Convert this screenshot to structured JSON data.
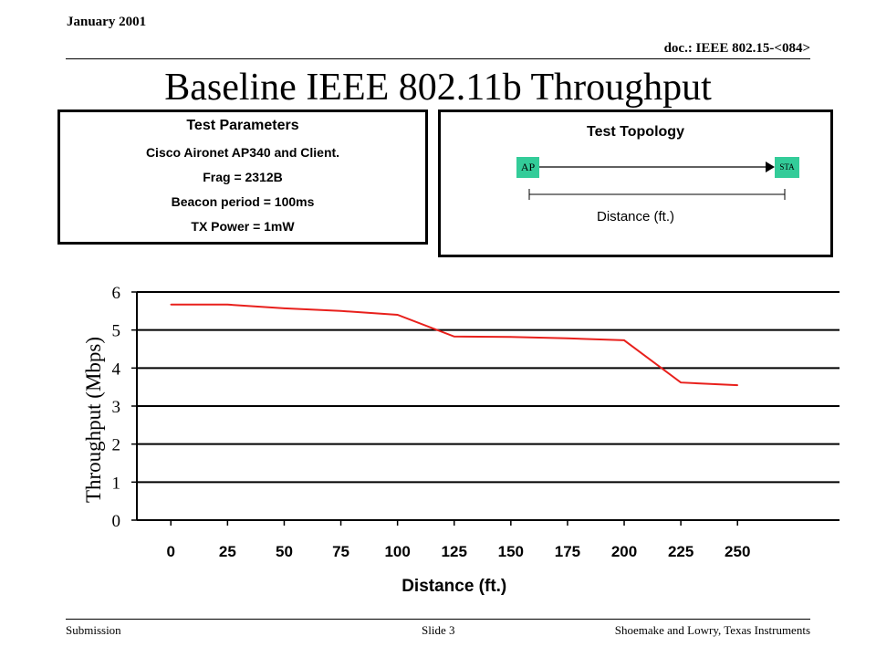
{
  "header": {
    "date": "January 2001",
    "doc_id": "doc.: IEEE 802.15-<084>"
  },
  "slide_title": "Baseline IEEE 802.11b Throughput",
  "test_parameters": {
    "heading": "Test Parameters",
    "lines": [
      "Cisco Aironet AP340 and Client.",
      "Frag = 2312B",
      "Beacon period = 100ms",
      "TX Power = 1mW"
    ]
  },
  "test_topology": {
    "heading": "Test Topology",
    "ap_label": "AP",
    "sta_label": "STA",
    "distance_label": "Distance (ft.)"
  },
  "chart_data": {
    "type": "line",
    "xlabel": "Distance (ft.)",
    "ylabel": "Throughput (Mbps)",
    "x_ticks": [
      "0",
      "25",
      "50",
      "75",
      "100",
      "125",
      "150",
      "175",
      "200",
      "225",
      "250"
    ],
    "y_ticks": [
      "0",
      "1",
      "2",
      "3",
      "4",
      "5",
      "6"
    ],
    "xlim": [
      -15,
      295
    ],
    "ylim": [
      0,
      6
    ],
    "grid": "horizontal",
    "series": [
      {
        "color": "#e8201c",
        "x": [
          0,
          25,
          50,
          75,
          100,
          125,
          150,
          175,
          200,
          225,
          250
        ],
        "y": [
          5.67,
          5.67,
          5.57,
          5.5,
          5.4,
          4.83,
          4.82,
          4.78,
          4.73,
          3.62,
          3.55
        ]
      }
    ]
  },
  "footer": {
    "left": "Submission",
    "center": "Slide 3",
    "right": "Shoemake and Lowry, Texas Instruments"
  }
}
